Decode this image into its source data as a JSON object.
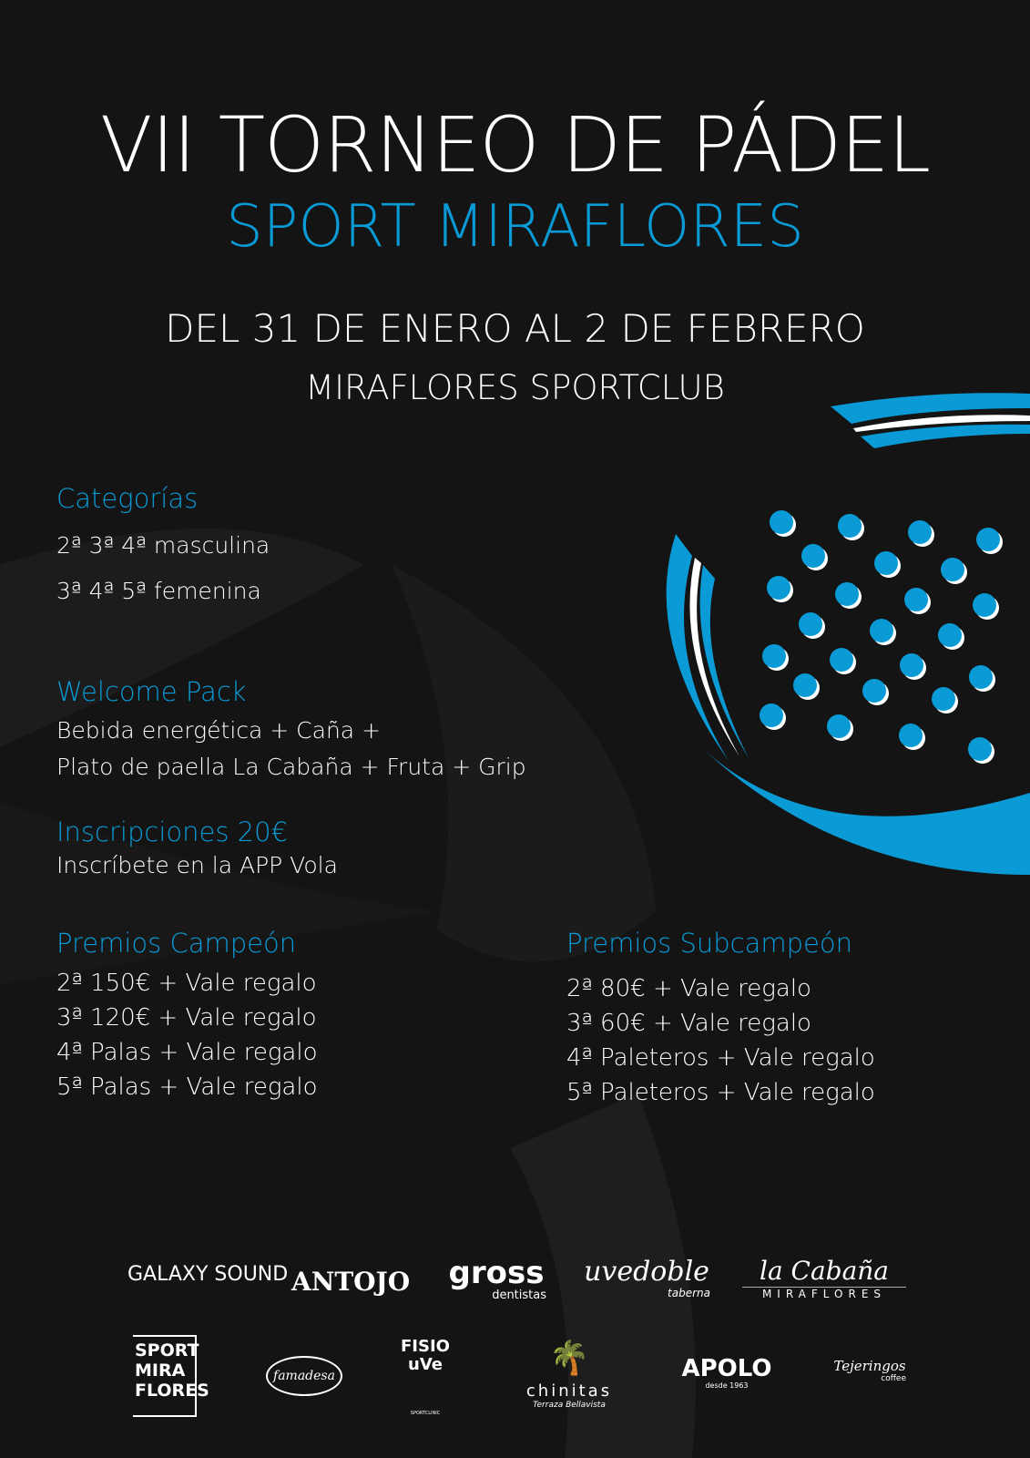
{
  "header": {
    "title": "VII TORNEO DE PÁDEL",
    "subtitle": "SPORT MIRAFLORES",
    "dates": "DEL 31 DE ENERO AL 2 DE FEBRERO",
    "venue": "MIRAFLORES SPORTCLUB"
  },
  "colors": {
    "accent": "#0a9bd6",
    "background": "#141414",
    "text": "#ffffff"
  },
  "categories": {
    "heading": "Categorías",
    "items": [
      "2ª 3ª 4ª masculina",
      "3ª 4ª 5ª femenina"
    ]
  },
  "welcome_pack": {
    "heading": "Welcome Pack",
    "lines": [
      "Bebida energética + Caña +",
      "Plato de paella La Cabaña + Fruta + Grip"
    ]
  },
  "inscriptions": {
    "heading": "Inscripciones 20€",
    "text": "Inscríbete en la APP Vola"
  },
  "prizes_champion": {
    "heading": "Premios Campeón",
    "items": [
      "2ª 150€ + Vale regalo",
      "3ª 120€ + Vale regalo",
      "4ª Palas + Vale regalo",
      "5ª Palas + Vale regalo"
    ]
  },
  "prizes_runner_up": {
    "heading": "Premios Subcampeón",
    "items": [
      "2ª 80€ + Vale regalo",
      "3ª 60€ + Vale regalo",
      "4ª Paleteros + Vale regalo",
      "5ª Paleteros + Vale regalo"
    ]
  },
  "decoration": {
    "icon": "padel-racket-icon"
  },
  "sponsors": [
    {
      "name": "GALAXY SOUND"
    },
    {
      "name": "ANTOJO"
    },
    {
      "name": "gross",
      "tag": "dentistas"
    },
    {
      "name": "uvedoble",
      "tag": "taberna"
    },
    {
      "name": "la Cabaña",
      "tag": "MIRAFLORES"
    },
    {
      "name": "SPORT MIRA FLORES"
    },
    {
      "name": "famadesa"
    },
    {
      "name": "FISIO uVe",
      "tag": "SPORTCLINIC"
    },
    {
      "name": "chinitas",
      "tag": "Terraza Bellavista"
    },
    {
      "name": "APOLO",
      "tag": "desde 1963"
    },
    {
      "name": "Tejeringos",
      "tag": "coffee"
    }
  ]
}
